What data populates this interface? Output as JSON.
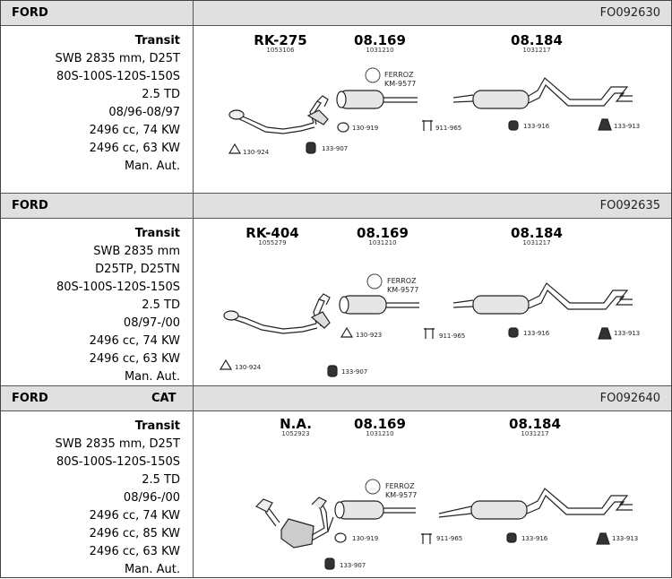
{
  "blocks": [
    {
      "make": "FORD",
      "category": "",
      "code": "FO092630",
      "spec_lines": [
        "Transit",
        "SWB 2835 mm, D25T",
        "80S-100S-120S-150S",
        "2.5 TD",
        "08/96-08/97",
        "2496 cc, 74 KW",
        "2496 cc, 63 KW",
        "Man. Aut."
      ],
      "parts": [
        {
          "number": "RK-275",
          "ref": "1053106"
        },
        {
          "number": "08.169",
          "ref": "1031210"
        },
        {
          "number": "08.184",
          "ref": "1031217"
        }
      ],
      "ferroz": {
        "line1": "FERROZ",
        "line2": "KM-9577"
      },
      "accessories": [
        "130-924",
        "133-907",
        "130-919",
        "911-965",
        "133-916",
        "133-913"
      ]
    },
    {
      "make": "FORD",
      "category": "",
      "code": "FO092635",
      "spec_lines": [
        "Transit",
        "SWB 2835 mm",
        "D25TP, D25TN",
        "80S-100S-120S-150S",
        "2.5 TD",
        "08/97-/00",
        "2496 cc, 74 KW",
        "2496 cc, 63 KW",
        "Man. Aut."
      ],
      "parts": [
        {
          "number": "RK-404",
          "ref": "1055279"
        },
        {
          "number": "08.169",
          "ref": "1031210"
        },
        {
          "number": "08.184",
          "ref": "1031217"
        }
      ],
      "ferroz": {
        "line1": "FERROZ",
        "line2": "KM-9577"
      },
      "accessories": [
        "130-924",
        "133-907",
        "130-923",
        "911-965",
        "133-916",
        "133-913"
      ]
    },
    {
      "make": "FORD",
      "category": "CAT",
      "code": "FO092640",
      "spec_lines": [
        "Transit",
        "SWB 2835 mm, D25T",
        "80S-100S-120S-150S",
        "2.5 TD",
        "08/96-/00",
        "2496 cc, 74 KW",
        "2496 cc, 85 KW",
        "2496 cc, 63 KW",
        "Man. Aut."
      ],
      "parts": [
        {
          "number": "N.A.",
          "ref": "1052923"
        },
        {
          "number": "08.169",
          "ref": "1031210"
        },
        {
          "number": "08.184",
          "ref": "1031217"
        }
      ],
      "ferroz": {
        "line1": "FERROZ",
        "line2": "KM-9577"
      },
      "accessories": [
        "133-907",
        "130-919",
        "911-965",
        "133-916",
        "133-913"
      ]
    }
  ]
}
